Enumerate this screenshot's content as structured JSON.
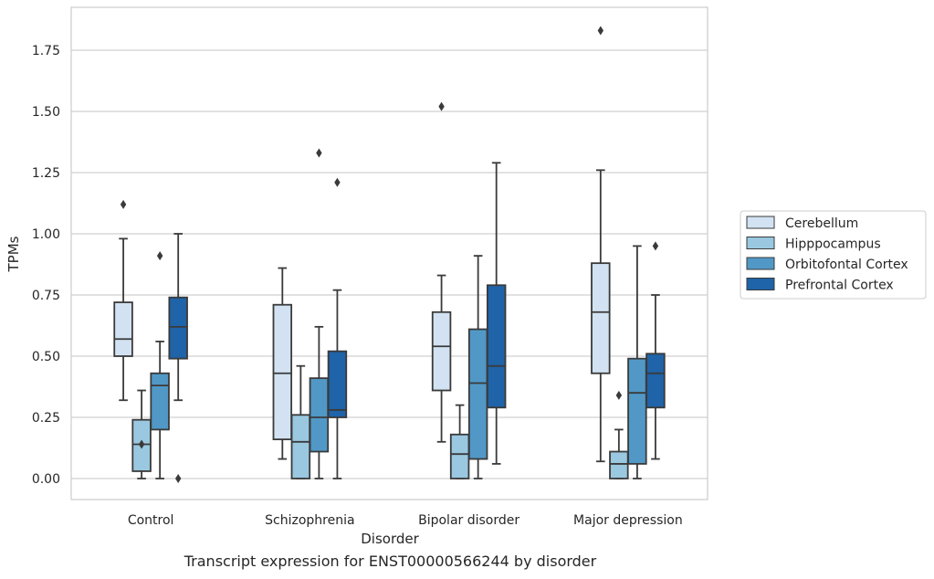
{
  "caption": "Transcript expression for ENST00000566244 by disorder",
  "chart_data": {
    "type": "box",
    "xlabel": "Disorder",
    "ylabel": "TPMs",
    "ylim": [
      -0.09,
      1.92
    ],
    "yticks": [
      "0.00",
      "0.25",
      "0.50",
      "0.75",
      "1.00",
      "1.25",
      "1.50",
      "1.75"
    ],
    "grid": "horizontal",
    "legend_position": "right",
    "categories": [
      "Control",
      "Schizophrenia",
      "Bipolar disorder",
      "Major depression"
    ],
    "series": [
      {
        "name": "Cerebellum",
        "color": "#d2e2f2",
        "boxes": [
          {
            "whislo": 0.32,
            "q1": 0.5,
            "med": 0.57,
            "q3": 0.72,
            "whishi": 0.98,
            "fliers": [
              1.12
            ]
          },
          {
            "whislo": 0.08,
            "q1": 0.16,
            "med": 0.43,
            "q3": 0.71,
            "whishi": 0.86,
            "fliers": []
          },
          {
            "whislo": 0.15,
            "q1": 0.36,
            "med": 0.54,
            "q3": 0.68,
            "whishi": 0.83,
            "fliers": [
              1.52
            ]
          },
          {
            "whislo": 0.07,
            "q1": 0.43,
            "med": 0.68,
            "q3": 0.88,
            "whishi": 1.26,
            "fliers": [
              1.83
            ]
          }
        ]
      },
      {
        "name": "Hipppocampus",
        "color": "#9ac8e0",
        "boxes": [
          {
            "whislo": 0.0,
            "q1": 0.03,
            "med": 0.14,
            "q3": 0.24,
            "whishi": 0.36,
            "fliers": [
              0.14
            ]
          },
          {
            "whislo": 0.0,
            "q1": 0.0,
            "med": 0.15,
            "q3": 0.26,
            "whishi": 0.46,
            "fliers": []
          },
          {
            "whislo": 0.0,
            "q1": 0.0,
            "med": 0.1,
            "q3": 0.18,
            "whishi": 0.3,
            "fliers": []
          },
          {
            "whislo": 0.0,
            "q1": 0.0,
            "med": 0.06,
            "q3": 0.11,
            "whishi": 0.2,
            "fliers": [
              0.34
            ]
          }
        ]
      },
      {
        "name": "Orbitofontal Cortex",
        "color": "#5198c6",
        "boxes": [
          {
            "whislo": 0.0,
            "q1": 0.2,
            "med": 0.38,
            "q3": 0.43,
            "whishi": 0.56,
            "fliers": [
              0.91
            ]
          },
          {
            "whislo": 0.0,
            "q1": 0.11,
            "med": 0.25,
            "q3": 0.41,
            "whishi": 0.62,
            "fliers": [
              1.33
            ]
          },
          {
            "whislo": 0.0,
            "q1": 0.08,
            "med": 0.39,
            "q3": 0.61,
            "whishi": 0.91,
            "fliers": []
          },
          {
            "whislo": 0.0,
            "q1": 0.06,
            "med": 0.35,
            "q3": 0.49,
            "whishi": 0.95,
            "fliers": []
          }
        ]
      },
      {
        "name": "Prefrontal Cortex",
        "color": "#1f63a8",
        "boxes": [
          {
            "whislo": 0.32,
            "q1": 0.49,
            "med": 0.62,
            "q3": 0.74,
            "whishi": 1.0,
            "fliers": [
              0.0
            ]
          },
          {
            "whislo": 0.0,
            "q1": 0.25,
            "med": 0.28,
            "q3": 0.52,
            "whishi": 0.77,
            "fliers": [
              1.21
            ]
          },
          {
            "whislo": 0.06,
            "q1": 0.29,
            "med": 0.46,
            "q3": 0.79,
            "whishi": 1.29,
            "fliers": []
          },
          {
            "whislo": 0.08,
            "q1": 0.29,
            "med": 0.43,
            "q3": 0.51,
            "whishi": 0.75,
            "fliers": [
              0.95
            ]
          }
        ]
      }
    ]
  }
}
